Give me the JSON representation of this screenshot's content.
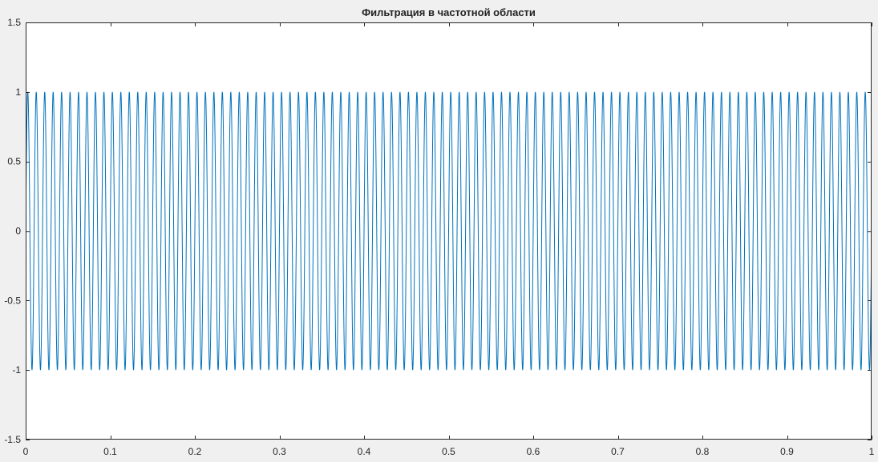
{
  "chart_data": {
    "type": "line",
    "title": "Фильтрация в частотной области",
    "xlabel": "",
    "ylabel": "",
    "xlim": [
      0,
      1
    ],
    "ylim": [
      -1.5,
      1.5
    ],
    "x_ticks": [
      0,
      0.1,
      0.2,
      0.3,
      0.4,
      0.5,
      0.6,
      0.7,
      0.8,
      0.9,
      1
    ],
    "x_tick_labels": [
      "0",
      "0.1",
      "0.2",
      "0.3",
      "0.4",
      "0.5",
      "0.6",
      "0.7",
      "0.8",
      "0.9",
      "1"
    ],
    "y_ticks": [
      -1.5,
      -1,
      -0.5,
      0,
      0.5,
      1,
      1.5
    ],
    "y_tick_labels": [
      "-1.5",
      "-1",
      "-0.5",
      "0",
      "0.5",
      "1",
      "1.5"
    ],
    "grid": false,
    "legend": "none",
    "series": [
      {
        "color": "#0072BD",
        "function": "sin(2*pi*f*x)",
        "amplitude": 1,
        "frequency": 100,
        "x_start": 0,
        "x_end": 1
      }
    ]
  },
  "colors": {
    "background": "#f0f0f0",
    "axes_background": "#ffffff",
    "axes_line": "#262626",
    "line": "#0072BD"
  }
}
